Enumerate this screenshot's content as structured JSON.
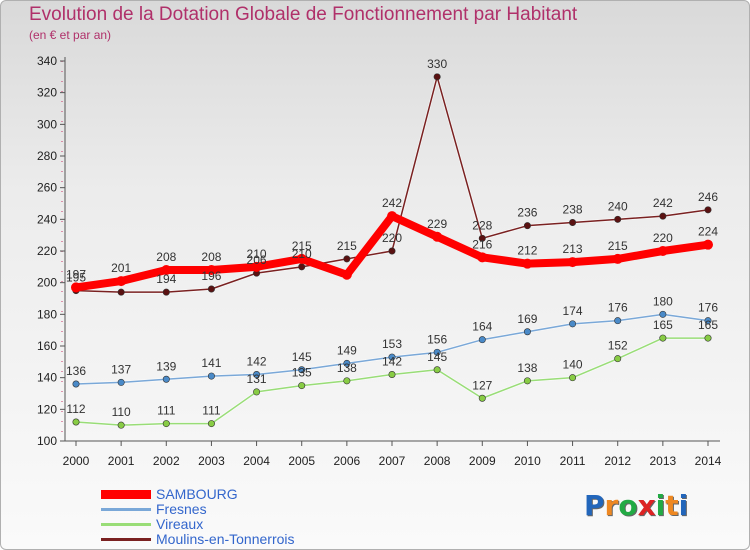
{
  "title": "Evolution de la Dotation Globale de Fonctionnement par Habitant",
  "subtitle": "(en € et par an)",
  "logo": "Proxiti",
  "chart_data": {
    "type": "line",
    "x": [
      2000,
      2001,
      2002,
      2003,
      2004,
      2005,
      2006,
      2007,
      2008,
      2009,
      2010,
      2011,
      2012,
      2013,
      2014
    ],
    "xlabels": [
      "2000",
      "2001",
      "2002",
      "2003",
      "2004",
      "2005",
      "2006",
      "2007",
      "2008",
      "2009",
      "2010",
      "2011",
      "2012",
      "2013",
      "2014"
    ],
    "ylim": [
      100,
      340
    ],
    "yticks": [
      100,
      120,
      140,
      160,
      180,
      200,
      220,
      240,
      260,
      280,
      300,
      320,
      340
    ],
    "grid": false,
    "legend_position": "bottom-left",
    "series": [
      {
        "name": "Moulins-en-Tonnerrois",
        "color": "#7a2121",
        "marker": "#5a1111",
        "values": [
          195,
          194,
          194,
          196,
          206,
          210,
          215,
          220,
          330,
          228,
          236,
          238,
          240,
          242,
          246
        ]
      },
      {
        "name": "Vireaux",
        "color": "#99dd77",
        "marker": "#88cc44",
        "values": [
          112,
          110,
          111,
          111,
          131,
          135,
          138,
          142,
          145,
          127,
          138,
          140,
          152,
          165,
          165
        ]
      },
      {
        "name": "Fresnes",
        "color": "#7aa8d8",
        "marker": "#4a8ac8",
        "values": [
          136,
          137,
          139,
          141,
          142,
          145,
          149,
          153,
          156,
          164,
          169,
          174,
          176,
          180,
          176
        ]
      },
      {
        "name": "SAMBOURG",
        "color": "#ff0000",
        "marker": "#ff0000",
        "values": [
          197,
          201,
          208,
          208,
          210,
          215,
          205,
          242,
          229,
          216,
          212,
          213,
          215,
          220,
          224
        ]
      }
    ],
    "data_labels": {
      "Moulins-en-Tonnerrois": [
        "195",
        "",
        "194",
        "196",
        "206",
        "210",
        "215",
        "220",
        "330",
        "228",
        "236",
        "238",
        "240",
        "242",
        "246"
      ],
      "Vireaux": [
        "112",
        "110",
        "111",
        "111",
        "131",
        "135",
        "138",
        "142",
        "145",
        "127",
        "138",
        "140",
        "152",
        "165",
        "165"
      ],
      "Fresnes": [
        "136",
        "137",
        "139",
        "141",
        "142",
        "145",
        "149",
        "153",
        "156",
        "164",
        "169",
        "174",
        "176",
        "180",
        "176"
      ],
      "SAMBOURG": [
        "197",
        "201",
        "208",
        "208",
        "210",
        "215",
        "",
        "242",
        "229",
        "216",
        "212",
        "213",
        "215",
        "220",
        "224"
      ]
    },
    "legend": [
      {
        "name": "SAMBOURG",
        "color": "#ff0000",
        "thick": true
      },
      {
        "name": "Fresnes",
        "color": "#7aa8d8",
        "thick": false
      },
      {
        "name": "Vireaux",
        "color": "#99dd77",
        "thick": false
      },
      {
        "name": "Moulins-en-Tonnerrois",
        "color": "#7a2121",
        "thick": false
      }
    ]
  }
}
